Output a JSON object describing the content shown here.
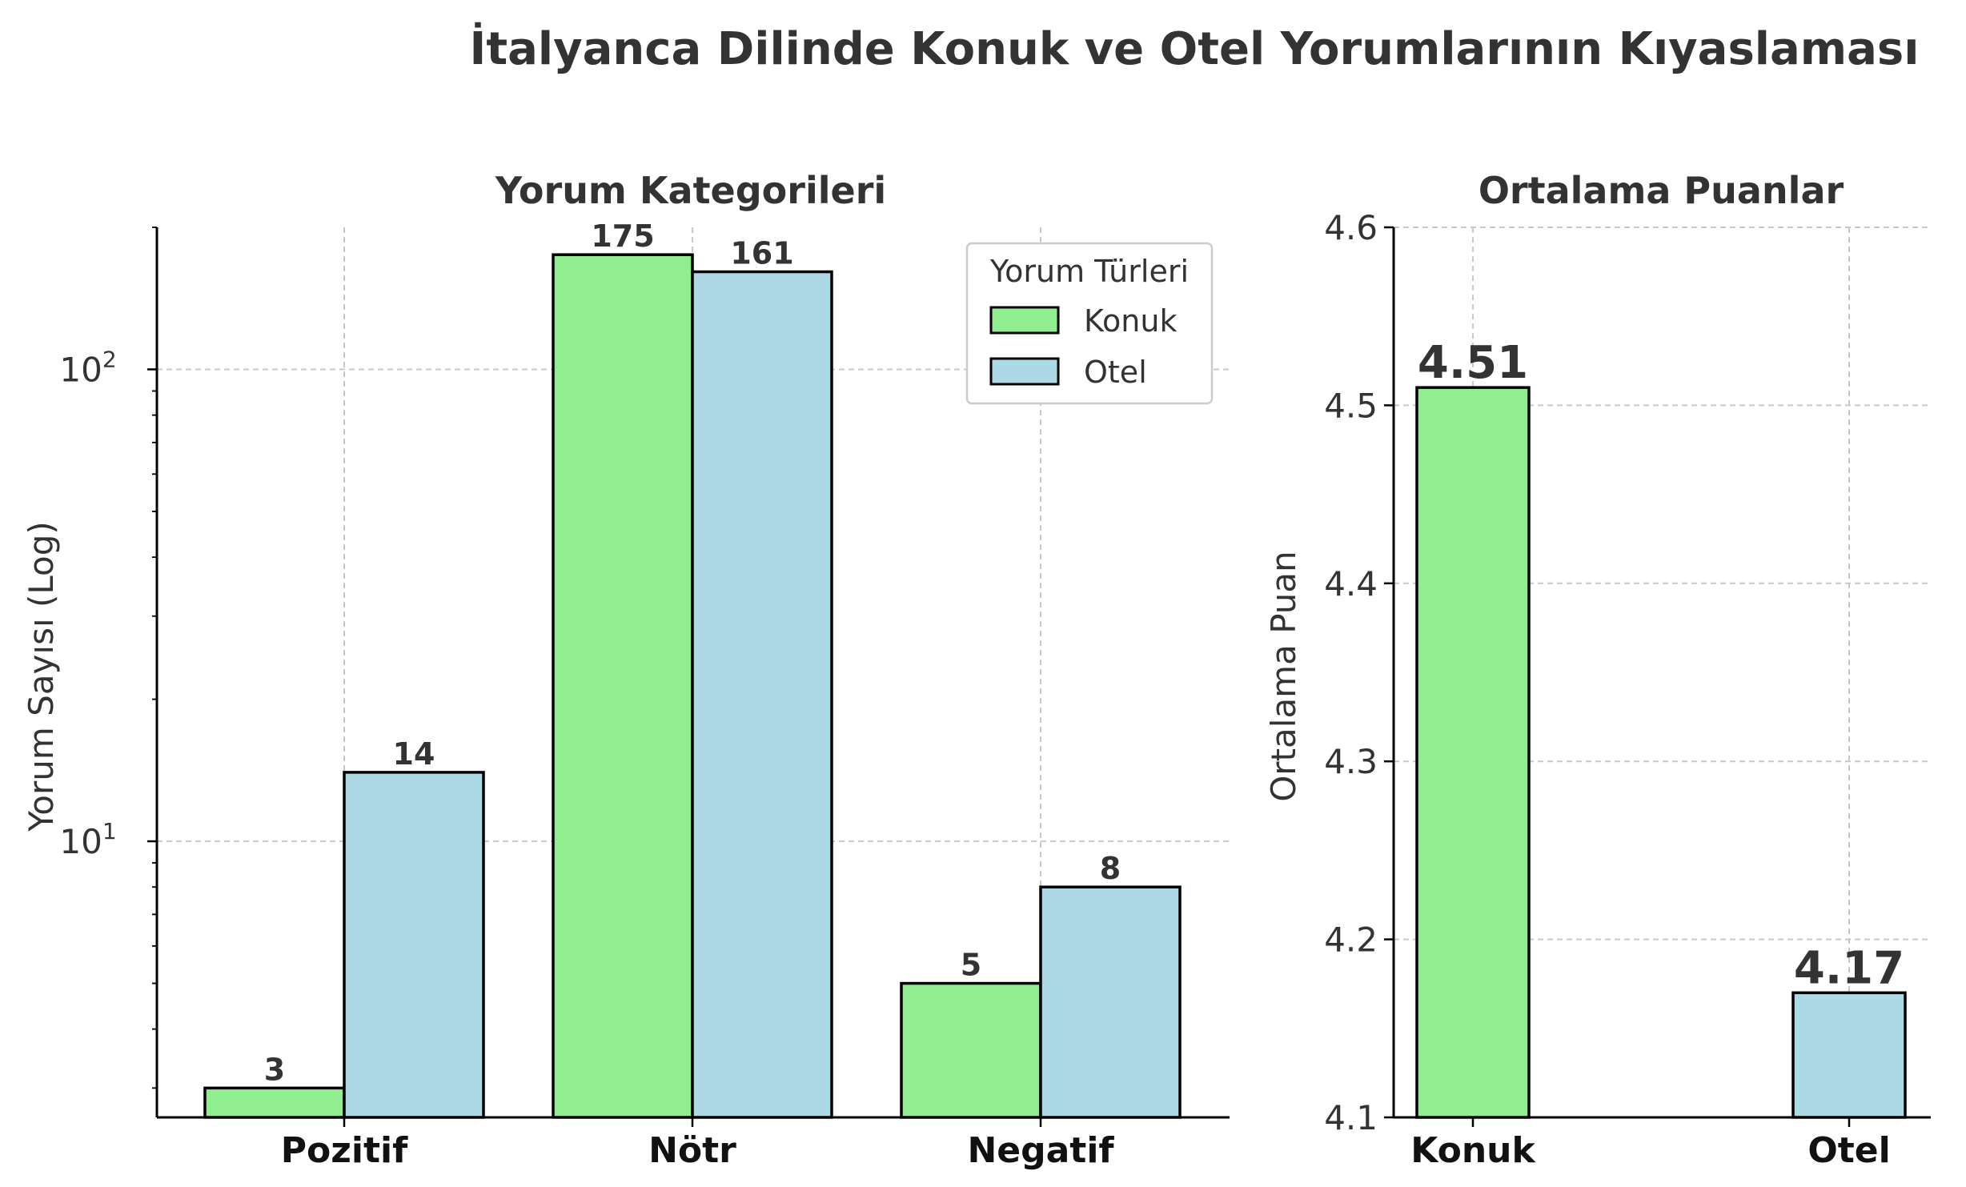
{
  "figure": {
    "title": "İtalyanca Dilinde Konuk ve Otel Yorumlarının Kıyaslaması"
  },
  "colors": {
    "konuk": "#90ee90",
    "otel": "#add8e6",
    "text": "#333333",
    "grid": "#c8c8c8"
  },
  "chart_data": [
    {
      "type": "bar",
      "title": "Yorum Kategorileri",
      "xlabel": "",
      "ylabel": "Yorum Sayısı (Log)",
      "yscale": "log",
      "ylim": [
        2.6,
        200
      ],
      "yticks": [
        {
          "value": 10,
          "base": "10",
          "exp": "1"
        },
        {
          "value": 100,
          "base": "10",
          "exp": "2"
        }
      ],
      "categories": [
        "Pozitif",
        "Nötr",
        "Negatif"
      ],
      "series": [
        {
          "name": "Konuk",
          "values": [
            3,
            175,
            5
          ],
          "color": "#90ee90"
        },
        {
          "name": "Otel",
          "values": [
            14,
            161,
            8
          ],
          "color": "#add8e6"
        }
      ],
      "data_labels": [
        [
          "3",
          "175",
          "5"
        ],
        [
          "14",
          "161",
          "8"
        ]
      ],
      "legend": {
        "title": "Yorum Türleri",
        "placement": "top-right"
      },
      "grid": true
    },
    {
      "type": "bar",
      "title": "Ortalama Puanlar",
      "xlabel": "",
      "ylabel": "Ortalama Puan",
      "ylim": [
        4.1,
        4.6
      ],
      "yticks": [
        "4.1",
        "4.2",
        "4.3",
        "4.4",
        "4.5",
        "4.6"
      ],
      "categories": [
        "Konuk",
        "Otel"
      ],
      "values": [
        4.51,
        4.17
      ],
      "data_labels": [
        "4.51",
        "4.17"
      ],
      "bar_colors": [
        "#90ee90",
        "#add8e6"
      ],
      "grid": true
    }
  ]
}
